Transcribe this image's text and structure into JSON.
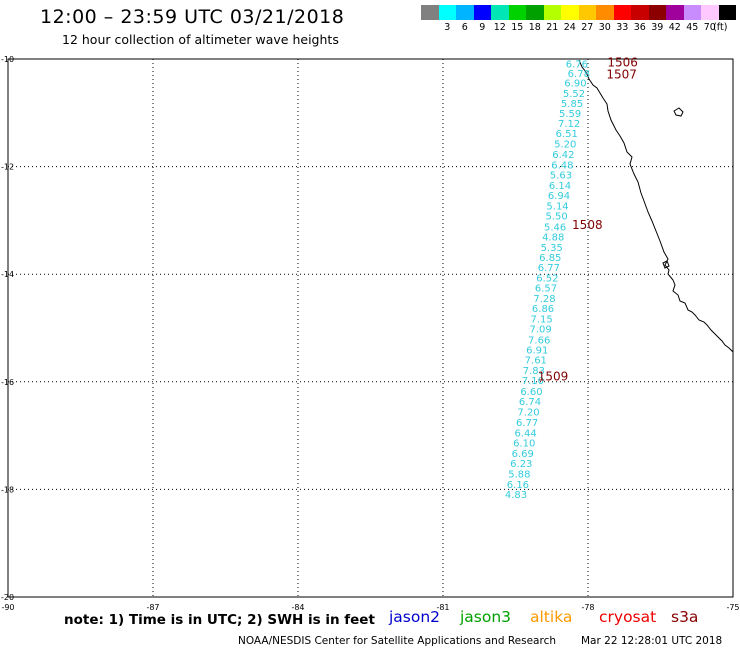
{
  "header": {
    "title": "12:00 – 23:59 UTC 03/21/2018",
    "subtitle": "12 hour collection of altimeter wave heights"
  },
  "color_scale": {
    "unit": "(ft)",
    "bins": [
      {
        "color": "#808080",
        "label": ""
      },
      {
        "color": "#00ffff",
        "label": "3"
      },
      {
        "color": "#00b4ff",
        "label": "6"
      },
      {
        "color": "#0000ff",
        "label": "9"
      },
      {
        "color": "#00e6b4",
        "label": "12"
      },
      {
        "color": "#00d200",
        "label": "15"
      },
      {
        "color": "#00a000",
        "label": "18"
      },
      {
        "color": "#b4ff00",
        "label": "21"
      },
      {
        "color": "#ffff00",
        "label": "24"
      },
      {
        "color": "#ffc800",
        "label": "27"
      },
      {
        "color": "#ff8c00",
        "label": "30"
      },
      {
        "color": "#ff0000",
        "label": "33"
      },
      {
        "color": "#c80000",
        "label": "36"
      },
      {
        "color": "#8c0000",
        "label": "39"
      },
      {
        "color": "#a0009b",
        "label": "42"
      },
      {
        "color": "#c88cff",
        "label": "45"
      },
      {
        "color": "#ffc8ff",
        "label": "70"
      },
      {
        "color": "#000000",
        "label": ""
      }
    ]
  },
  "map": {
    "lon_range": [
      -90,
      -75
    ],
    "lat_range": [
      -20,
      -10
    ],
    "lon_ticks": [
      "-90",
      "-87",
      "-84",
      "-81",
      "-78",
      "-75"
    ],
    "lat_ticks": [
      "-10",
      "-12",
      "-14",
      "-16",
      "-18",
      "-20"
    ],
    "wave_color": "#33ccdd",
    "time_color": "#800000",
    "wave_heights": [
      {
        "lat": -10.08,
        "lon": -78.23,
        "value": "6.76"
      },
      {
        "lat": -10.26,
        "lon": -78.19,
        "value": "6.78"
      },
      {
        "lat": -10.44,
        "lon": -78.26,
        "value": "6.90"
      },
      {
        "lat": -10.63,
        "lon": -78.29,
        "value": "5.52"
      },
      {
        "lat": -10.82,
        "lon": -78.33,
        "value": "5.85"
      },
      {
        "lat": -11.0,
        "lon": -78.37,
        "value": "5.59"
      },
      {
        "lat": -11.19,
        "lon": -78.39,
        "value": "7.12"
      },
      {
        "lat": -11.38,
        "lon": -78.44,
        "value": "6.51"
      },
      {
        "lat": -11.57,
        "lon": -78.47,
        "value": "5.20"
      },
      {
        "lat": -11.77,
        "lon": -78.51,
        "value": "6.42"
      },
      {
        "lat": -11.96,
        "lon": -78.53,
        "value": "6.48"
      },
      {
        "lat": -12.15,
        "lon": -78.56,
        "value": "5.63"
      },
      {
        "lat": -12.34,
        "lon": -78.58,
        "value": "6.14"
      },
      {
        "lat": -12.53,
        "lon": -78.6,
        "value": "6.94"
      },
      {
        "lat": -12.72,
        "lon": -78.63,
        "value": "5.14"
      },
      {
        "lat": -12.91,
        "lon": -78.65,
        "value": "5.50"
      },
      {
        "lat": -13.11,
        "lon": -78.68,
        "value": "5.46"
      },
      {
        "lat": -13.3,
        "lon": -78.72,
        "value": "4.88"
      },
      {
        "lat": -13.49,
        "lon": -78.75,
        "value": "5.35"
      },
      {
        "lat": -13.68,
        "lon": -78.78,
        "value": "6.85"
      },
      {
        "lat": -13.87,
        "lon": -78.81,
        "value": "6.77"
      },
      {
        "lat": -14.06,
        "lon": -78.84,
        "value": "6.52"
      },
      {
        "lat": -14.25,
        "lon": -78.87,
        "value": "6.57"
      },
      {
        "lat": -14.44,
        "lon": -78.9,
        "value": "7.28"
      },
      {
        "lat": -14.63,
        "lon": -78.93,
        "value": "6.86"
      },
      {
        "lat": -14.82,
        "lon": -78.96,
        "value": "7.15"
      },
      {
        "lat": -15.01,
        "lon": -78.98,
        "value": "7.09"
      },
      {
        "lat": -15.21,
        "lon": -79.01,
        "value": "7.66"
      },
      {
        "lat": -15.4,
        "lon": -79.05,
        "value": "6.91"
      },
      {
        "lat": -15.59,
        "lon": -79.08,
        "value": "7.61"
      },
      {
        "lat": -15.78,
        "lon": -79.12,
        "value": "7.83"
      },
      {
        "lat": -15.97,
        "lon": -79.14,
        "value": "7.10"
      },
      {
        "lat": -16.17,
        "lon": -79.17,
        "value": "6.60"
      },
      {
        "lat": -16.36,
        "lon": -79.2,
        "value": "6.74"
      },
      {
        "lat": -16.55,
        "lon": -79.23,
        "value": "7.20"
      },
      {
        "lat": -16.75,
        "lon": -79.26,
        "value": "6.77"
      },
      {
        "lat": -16.94,
        "lon": -79.29,
        "value": "6.44"
      },
      {
        "lat": -17.13,
        "lon": -79.32,
        "value": "6.10"
      },
      {
        "lat": -17.32,
        "lon": -79.35,
        "value": "6.69"
      },
      {
        "lat": -17.51,
        "lon": -79.38,
        "value": "6.23"
      },
      {
        "lat": -17.7,
        "lon": -79.42,
        "value": "5.88"
      },
      {
        "lat": -17.9,
        "lon": -79.45,
        "value": "6.16"
      },
      {
        "lat": -18.09,
        "lon": -79.49,
        "value": "4.83"
      }
    ],
    "time_labels": [
      {
        "lat": -10.05,
        "lon": -77.6,
        "value": "1506"
      },
      {
        "lat": -10.27,
        "lon": -77.62,
        "value": "1507"
      },
      {
        "lat": -13.07,
        "lon": -78.33,
        "value": "1508"
      },
      {
        "lat": -15.88,
        "lon": -79.04,
        "value": "1509"
      }
    ]
  },
  "legend": {
    "note": "note: 1) Time is in UTC; 2) SWH is in feet",
    "satellites": [
      {
        "name": "jason2",
        "color": "#0000cc"
      },
      {
        "name": "jason3",
        "color": "#00a000"
      },
      {
        "name": "altika",
        "color": "#ff9900"
      },
      {
        "name": "cryosat",
        "color": "#ee0000"
      },
      {
        "name": "s3a",
        "color": "#880000"
      }
    ]
  },
  "footer": {
    "credit": "NOAA/NESDIS Center for Satellite Applications and Research",
    "timestamp": "Mar 22 12:28:01 UTC 2018"
  }
}
